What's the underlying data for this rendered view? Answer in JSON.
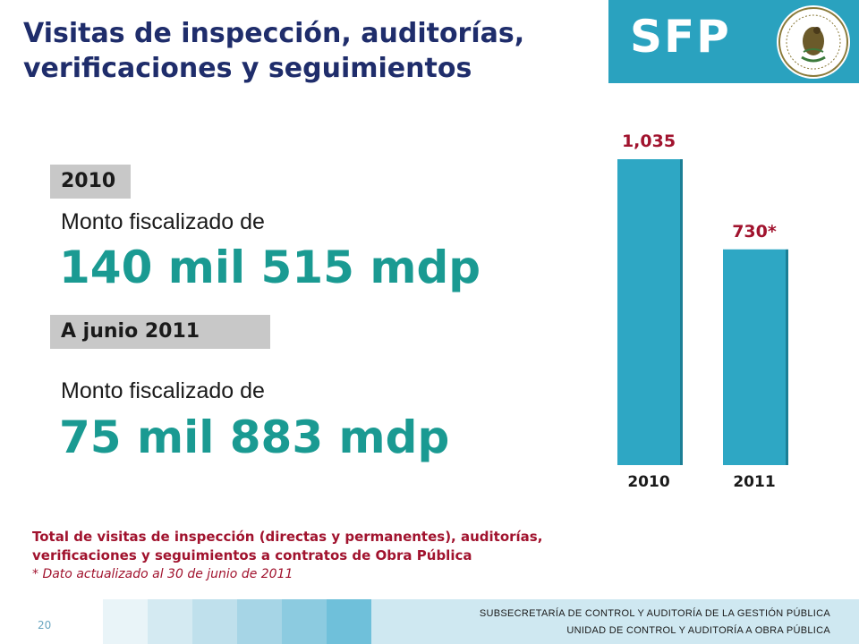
{
  "header": {
    "title_line1": "Visitas de inspección, auditorías,",
    "title_line2": "verificaciones y seguimientos",
    "logo_text": "SFP",
    "seal_icon": "mexican-coat-of-arms-icon"
  },
  "section_2010": {
    "chip": "2010",
    "label": "Monto fiscalizado de",
    "amount": "140 mil 515 mdp"
  },
  "section_2011": {
    "chip": "A junio 2011",
    "label": "Monto fiscalizado de",
    "amount": "75 mil 883 mdp"
  },
  "chart_data": {
    "type": "bar",
    "categories": [
      "2010",
      "2011"
    ],
    "values": [
      1035,
      730
    ],
    "data_labels": [
      "1,035",
      "730*"
    ],
    "bar_color": "#2ea7c4",
    "label_color": "#a1132e",
    "ylim": [
      0,
      1035
    ]
  },
  "footnote": {
    "line1": "Total de visitas de inspección (directas y permanentes), auditorías,",
    "line2": "verificaciones y seguimientos a contratos de Obra Pública",
    "star": "* Dato actualizado al 30 de  junio de 2011"
  },
  "footer": {
    "page_number": "20",
    "line1": "SUBSECRETARÍA DE CONTROL Y AUDITORÍA DE LA GESTIÓN PÚBLICA",
    "line2": "UNIDAD DE CONTROL Y AUDITORÍA A OBRA PÚBLICA",
    "stripe_colors": [
      "#e9f4f8",
      "#d4eaf2",
      "#bfe0ec",
      "#a6d5e6",
      "#8ccbe0",
      "#6fc0da"
    ]
  }
}
